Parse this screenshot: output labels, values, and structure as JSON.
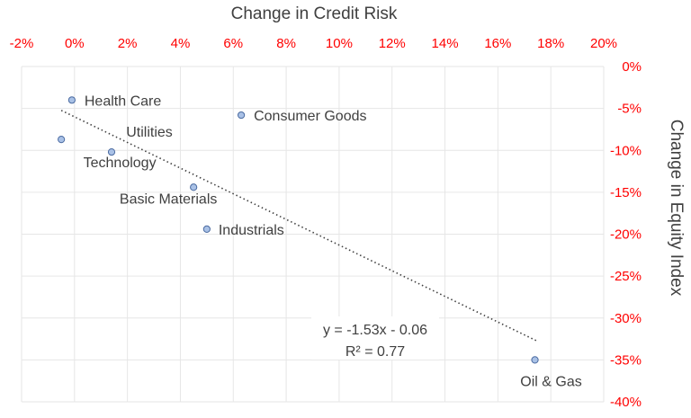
{
  "chart_data": {
    "type": "scatter",
    "xlabel": "Change in Credit Risk",
    "ylabel": "Change in Equity Index",
    "x_axis_position": "top",
    "y_axis_position": "right",
    "xlim": [
      -0.02,
      0.2
    ],
    "ylim": [
      -0.4,
      0
    ],
    "x_ticks": [
      -0.02,
      0.0,
      0.02,
      0.04,
      0.06,
      0.08,
      0.1,
      0.12,
      0.14,
      0.16,
      0.18,
      0.2
    ],
    "x_tick_labels": [
      "-2%",
      "0%",
      "2%",
      "4%",
      "6%",
      "8%",
      "10%",
      "12%",
      "14%",
      "16%",
      "18%",
      "20%"
    ],
    "y_ticks": [
      0,
      -0.05,
      -0.1,
      -0.15,
      -0.2,
      -0.25,
      -0.3,
      -0.35,
      -0.4
    ],
    "y_tick_labels": [
      "0%",
      "-5%",
      "-10%",
      "-15%",
      "-20%",
      "-25%",
      "-30%",
      "-35%",
      "-40%"
    ],
    "grid": true,
    "tick_color": "#ff0000",
    "marker_fill": "#a9c1e6",
    "marker_stroke": "#4a6aa0",
    "points": [
      {
        "label": "Health Care",
        "x": -0.001,
        "y": -0.04
      },
      {
        "label": "Consumer Goods",
        "x": 0.063,
        "y": -0.058
      },
      {
        "label": "Technology",
        "x": -0.005,
        "y": -0.087
      },
      {
        "label": "Utilities",
        "x": 0.014,
        "y": -0.102
      },
      {
        "label": "Basic Materials",
        "x": 0.045,
        "y": -0.144
      },
      {
        "label": "Industrials",
        "x": 0.05,
        "y": -0.194
      },
      {
        "label": "Oil & Gas",
        "x": 0.174,
        "y": -0.35
      }
    ],
    "trendline": {
      "type": "linear",
      "slope": -1.53,
      "intercept": -0.06,
      "x_range": [
        -0.005,
        0.175
      ],
      "equation": "y = -1.53x - 0.06",
      "r_squared": "R² = 0.77"
    }
  }
}
